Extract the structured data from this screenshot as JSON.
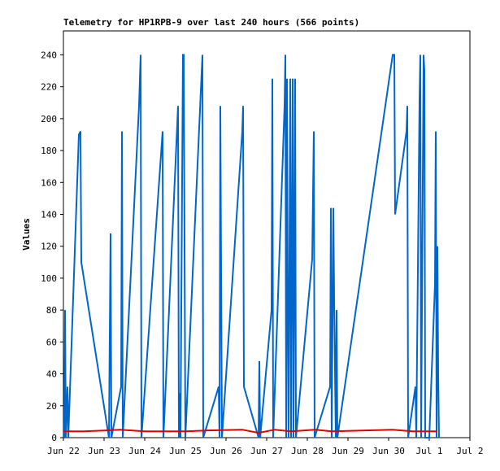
{
  "chart_data": {
    "type": "line",
    "title": "Telemetry for HP1RPB-9 over last 240 hours (566 points)",
    "y_label": "Values",
    "xlim": [
      0,
      10
    ],
    "xticks": [
      {
        "value": 0,
        "label": "Jun 22"
      },
      {
        "value": 1,
        "label": "Jun 23"
      },
      {
        "value": 2,
        "label": "Jun 24"
      },
      {
        "value": 3,
        "label": "Jun 25"
      },
      {
        "value": 4,
        "label": "Jun 26"
      },
      {
        "value": 5,
        "label": "Jun 27"
      },
      {
        "value": 6,
        "label": "Jun 28"
      },
      {
        "value": 7,
        "label": "Jun 29"
      },
      {
        "value": 8,
        "label": "Jun 30"
      },
      {
        "value": 9,
        "label": "Jul 1"
      },
      {
        "value": 10,
        "label": "Jul 2"
      }
    ],
    "ylim": [
      0,
      255
    ],
    "yticks": [
      0,
      20,
      40,
      60,
      80,
      100,
      120,
      140,
      160,
      180,
      200,
      220,
      240
    ],
    "grid": false,
    "series": [
      {
        "color": "#0066cc",
        "x": [
          0.02,
          0.04,
          0.06,
          0.1,
          0.12,
          0.38,
          0.42,
          0.44,
          1.12,
          1.16,
          1.18,
          1.42,
          1.44,
          1.46,
          1.86,
          1.9,
          1.92,
          2.44,
          2.46,
          2.82,
          2.84,
          2.86,
          2.88,
          2.94,
          2.96,
          2.98,
          3.0,
          3.42,
          3.44,
          3.82,
          3.84,
          3.86,
          3.88,
          3.9,
          4.4,
          4.42,
          4.44,
          4.8,
          4.82,
          4.84,
          5.12,
          5.14,
          5.16,
          5.44,
          5.46,
          5.48,
          5.5,
          5.52,
          5.54,
          5.58,
          5.6,
          5.64,
          5.66,
          5.7,
          5.72,
          6.12,
          6.16,
          6.18,
          6.56,
          6.58,
          6.6,
          6.64,
          6.66,
          6.7,
          6.72,
          6.74,
          8.1,
          8.14,
          8.16,
          8.44,
          8.46,
          8.48,
          8.66,
          8.68,
          8.76,
          8.78,
          8.8,
          8.86,
          8.88,
          8.9,
          9.0,
          9.14,
          9.16,
          9.18,
          9.2,
          9.22,
          9.24
        ],
        "values": [
          0,
          80,
          0,
          32,
          0,
          190,
          192,
          110,
          0,
          128,
          0,
          32,
          192,
          0,
          208,
          240,
          0,
          192,
          0,
          208,
          0,
          28,
          0,
          240,
          240,
          120,
          0,
          240,
          0,
          32,
          0,
          208,
          104,
          0,
          192,
          208,
          32,
          0,
          48,
          0,
          80,
          225,
          0,
          208,
          240,
          0,
          225,
          80,
          0,
          225,
          0,
          225,
          0,
          225,
          0,
          112,
          192,
          0,
          32,
          144,
          0,
          144,
          88,
          0,
          80,
          0,
          240,
          240,
          140,
          192,
          208,
          0,
          32,
          0,
          212,
          240,
          0,
          240,
          230,
          0,
          0,
          96,
          192,
          0,
          120,
          40,
          0
        ]
      },
      {
        "color": "#dd0000",
        "x": [
          0,
          0.5,
          1,
          1.4,
          2,
          3,
          3.5,
          4.4,
          4.8,
          5.2,
          5.6,
          6.2,
          6.6,
          8.1,
          8.6,
          9.2
        ],
        "values": [
          4,
          4,
          4.5,
          5,
          4,
          4,
          4.5,
          5,
          3,
          5,
          4,
          5,
          4,
          5,
          4,
          4
        ]
      }
    ]
  }
}
